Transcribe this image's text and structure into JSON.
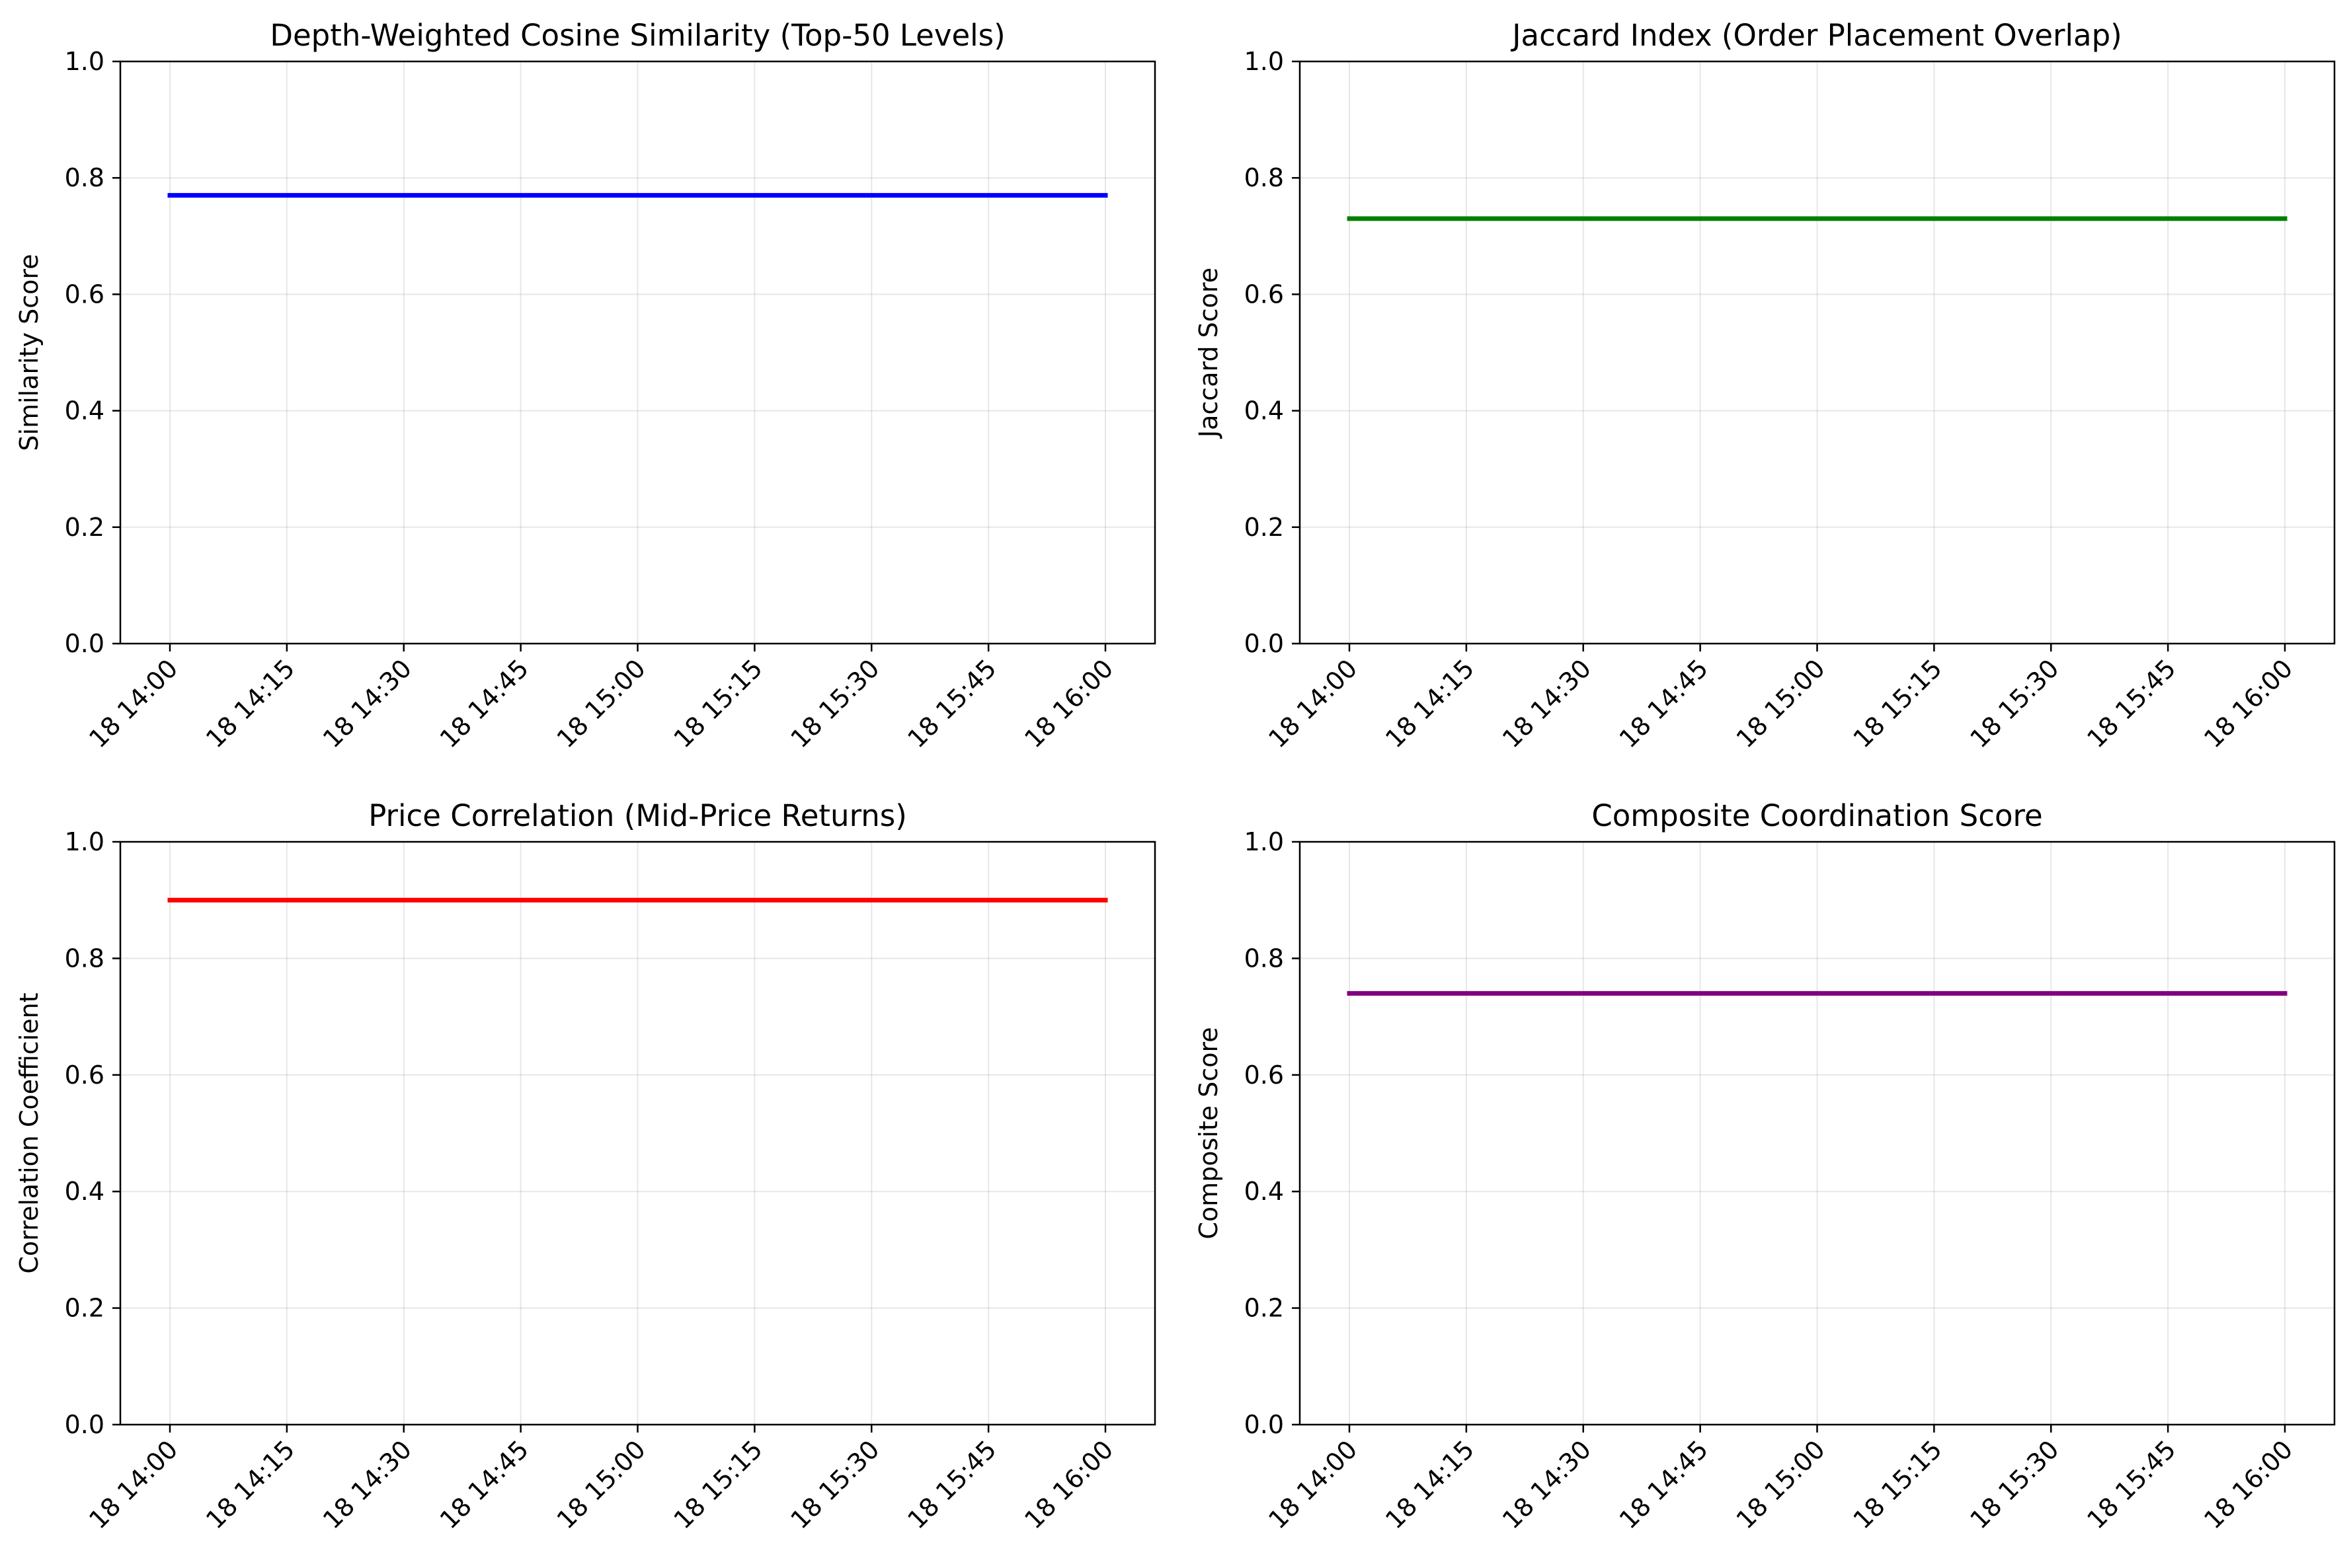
{
  "chart_data": [
    {
      "type": "line",
      "title": "Depth-Weighted Cosine Similarity (Top-50 Levels)",
      "xlabel": "",
      "ylabel": "Similarity Score",
      "ylim": [
        0,
        1
      ],
      "yticks": [
        "0.0",
        "0.2",
        "0.4",
        "0.6",
        "0.8",
        "1.0"
      ],
      "xticks": [
        "18 14:00",
        "18 14:15",
        "18 14:30",
        "18 14:45",
        "18 15:00",
        "18 15:15",
        "18 15:30",
        "18 15:45",
        "18 16:00"
      ],
      "grid": true,
      "color": "#0000ff",
      "series": [
        {
          "x": [
            "18 14:00",
            "18 16:00"
          ],
          "values": [
            0.77,
            0.77
          ]
        }
      ]
    },
    {
      "type": "line",
      "title": "Jaccard Index (Order Placement Overlap)",
      "xlabel": "",
      "ylabel": "Jaccard Score",
      "ylim": [
        0,
        1
      ],
      "yticks": [
        "0.0",
        "0.2",
        "0.4",
        "0.6",
        "0.8",
        "1.0"
      ],
      "xticks": [
        "18 14:00",
        "18 14:15",
        "18 14:30",
        "18 14:45",
        "18 15:00",
        "18 15:15",
        "18 15:30",
        "18 15:45",
        "18 16:00"
      ],
      "grid": true,
      "color": "#008000",
      "series": [
        {
          "x": [
            "18 14:00",
            "18 16:00"
          ],
          "values": [
            0.73,
            0.73
          ]
        }
      ]
    },
    {
      "type": "line",
      "title": "Price Correlation (Mid-Price Returns)",
      "xlabel": "",
      "ylabel": "Correlation Coefficient",
      "ylim": [
        0,
        1
      ],
      "yticks": [
        "0.0",
        "0.2",
        "0.4",
        "0.6",
        "0.8",
        "1.0"
      ],
      "xticks": [
        "18 14:00",
        "18 14:15",
        "18 14:30",
        "18 14:45",
        "18 15:00",
        "18 15:15",
        "18 15:30",
        "18 15:45",
        "18 16:00"
      ],
      "grid": true,
      "color": "#ff0000",
      "series": [
        {
          "x": [
            "18 14:00",
            "18 16:00"
          ],
          "values": [
            0.9,
            0.9
          ]
        }
      ]
    },
    {
      "type": "line",
      "title": "Composite Coordination Score",
      "xlabel": "",
      "ylabel": "Composite Score",
      "ylim": [
        0,
        1
      ],
      "yticks": [
        "0.0",
        "0.2",
        "0.4",
        "0.6",
        "0.8",
        "1.0"
      ],
      "xticks": [
        "18 14:00",
        "18 14:15",
        "18 14:30",
        "18 14:45",
        "18 15:00",
        "18 15:15",
        "18 15:30",
        "18 15:45",
        "18 16:00"
      ],
      "grid": true,
      "color": "#800080",
      "series": [
        {
          "x": [
            "18 14:00",
            "18 16:00"
          ],
          "values": [
            0.74,
            0.74
          ]
        }
      ]
    }
  ]
}
